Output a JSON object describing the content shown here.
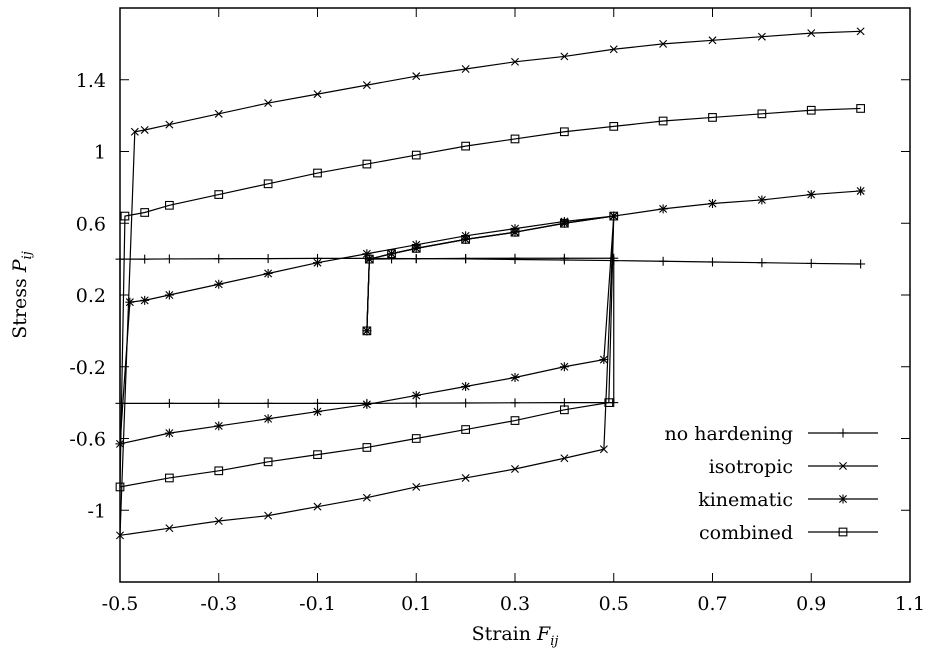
{
  "chart_data": {
    "type": "line",
    "xlabel_prefix": "Strain ",
    "xlabel_symbol": "F",
    "xlabel_sub": "ij",
    "ylabel_prefix": "Stress ",
    "ylabel_symbol": "P",
    "ylabel_sub": "ij",
    "xlim": [
      -0.5,
      1.1
    ],
    "ylim": [
      -1.4,
      1.8
    ],
    "xticks": [
      -0.5,
      -0.3,
      -0.1,
      0.1,
      0.3,
      0.5,
      0.7,
      0.9,
      1.1
    ],
    "xtick_labels": [
      "-0.5",
      "-0.3",
      "-0.1",
      "0.1",
      "0.3",
      "0.5",
      "0.7",
      "0.9",
      "1.1"
    ],
    "yticks": [
      -1.0,
      -0.6,
      -0.2,
      0.2,
      0.6,
      1.0,
      1.4
    ],
    "ytick_labels": [
      "-1",
      "-0.6",
      "-0.2",
      "0.2",
      "0.6",
      "1",
      "1.4"
    ],
    "grid": false,
    "legend_position": "bottom-right",
    "series": [
      {
        "name": "no hardening",
        "marker": "plus",
        "x": [
          0.0,
          0.005,
          0.05,
          0.1,
          0.2,
          0.3,
          0.4,
          0.5,
          0.5,
          0.4,
          0.3,
          0.2,
          0.1,
          0.0,
          -0.1,
          -0.2,
          -0.3,
          -0.4,
          -0.5,
          -0.5,
          -0.45,
          -0.4,
          -0.3,
          -0.2,
          -0.1,
          0.0,
          0.1,
          0.2,
          0.3,
          0.4,
          0.5,
          0.6,
          0.7,
          0.8,
          0.9,
          1.0
        ],
        "y": [
          0.0,
          0.4,
          0.401,
          0.402,
          0.404,
          0.405,
          0.405,
          0.405,
          -0.4,
          -0.4,
          -0.401,
          -0.402,
          -0.403,
          -0.404,
          -0.404,
          -0.404,
          -0.404,
          -0.404,
          -0.404,
          0.4,
          0.4,
          0.401,
          0.402,
          0.403,
          0.404,
          0.404,
          0.403,
          0.401,
          0.398,
          0.395,
          0.392,
          0.388,
          0.384,
          0.38,
          0.376,
          0.373
        ]
      },
      {
        "name": "isotropic",
        "marker": "x",
        "x": [
          0.0,
          0.005,
          0.05,
          0.1,
          0.2,
          0.3,
          0.4,
          0.5,
          0.48,
          0.4,
          0.3,
          0.2,
          0.1,
          0.0,
          -0.1,
          -0.2,
          -0.3,
          -0.4,
          -0.5,
          -0.47,
          -0.45,
          -0.4,
          -0.3,
          -0.2,
          -0.1,
          0.0,
          0.1,
          0.2,
          0.3,
          0.4,
          0.5,
          0.6,
          0.7,
          0.8,
          0.9,
          1.0
        ],
        "y": [
          0.0,
          0.4,
          0.43,
          0.46,
          0.51,
          0.55,
          0.6,
          0.64,
          -0.66,
          -0.71,
          -0.77,
          -0.82,
          -0.87,
          -0.93,
          -0.98,
          -1.03,
          -1.06,
          -1.1,
          -1.14,
          1.11,
          1.12,
          1.15,
          1.21,
          1.27,
          1.32,
          1.37,
          1.42,
          1.46,
          1.5,
          1.53,
          1.57,
          1.6,
          1.62,
          1.64,
          1.66,
          1.67
        ]
      },
      {
        "name": "kinematic",
        "marker": "star",
        "x": [
          0.0,
          0.005,
          0.05,
          0.1,
          0.2,
          0.3,
          0.4,
          0.5,
          0.48,
          0.4,
          0.3,
          0.2,
          0.1,
          0.0,
          -0.1,
          -0.2,
          -0.3,
          -0.4,
          -0.5,
          -0.48,
          -0.45,
          -0.4,
          -0.3,
          -0.2,
          -0.1,
          0.0,
          0.1,
          0.2,
          0.3,
          0.4,
          0.5,
          0.6,
          0.7,
          0.8,
          0.9,
          1.0
        ],
        "y": [
          0.0,
          0.4,
          0.43,
          0.46,
          0.51,
          0.55,
          0.6,
          0.64,
          -0.16,
          -0.2,
          -0.26,
          -0.31,
          -0.36,
          -0.41,
          -0.45,
          -0.49,
          -0.53,
          -0.57,
          -0.63,
          0.16,
          0.17,
          0.2,
          0.26,
          0.32,
          0.38,
          0.43,
          0.48,
          0.53,
          0.57,
          0.61,
          0.64,
          0.68,
          0.71,
          0.73,
          0.76,
          0.78
        ]
      },
      {
        "name": "combined",
        "marker": "square",
        "x": [
          0.0,
          0.005,
          0.05,
          0.1,
          0.2,
          0.3,
          0.4,
          0.5,
          0.49,
          0.4,
          0.3,
          0.2,
          0.1,
          0.0,
          -0.1,
          -0.2,
          -0.3,
          -0.4,
          -0.5,
          -0.49,
          -0.45,
          -0.4,
          -0.3,
          -0.2,
          -0.1,
          0.0,
          0.1,
          0.2,
          0.3,
          0.4,
          0.5,
          0.6,
          0.7,
          0.8,
          0.9,
          1.0
        ],
        "y": [
          0.0,
          0.4,
          0.43,
          0.46,
          0.51,
          0.55,
          0.6,
          0.64,
          -0.4,
          -0.44,
          -0.5,
          -0.55,
          -0.6,
          -0.65,
          -0.69,
          -0.73,
          -0.78,
          -0.82,
          -0.87,
          0.64,
          0.66,
          0.7,
          0.76,
          0.82,
          0.88,
          0.93,
          0.98,
          1.03,
          1.07,
          1.11,
          1.14,
          1.17,
          1.19,
          1.21,
          1.23,
          1.24
        ]
      }
    ]
  }
}
